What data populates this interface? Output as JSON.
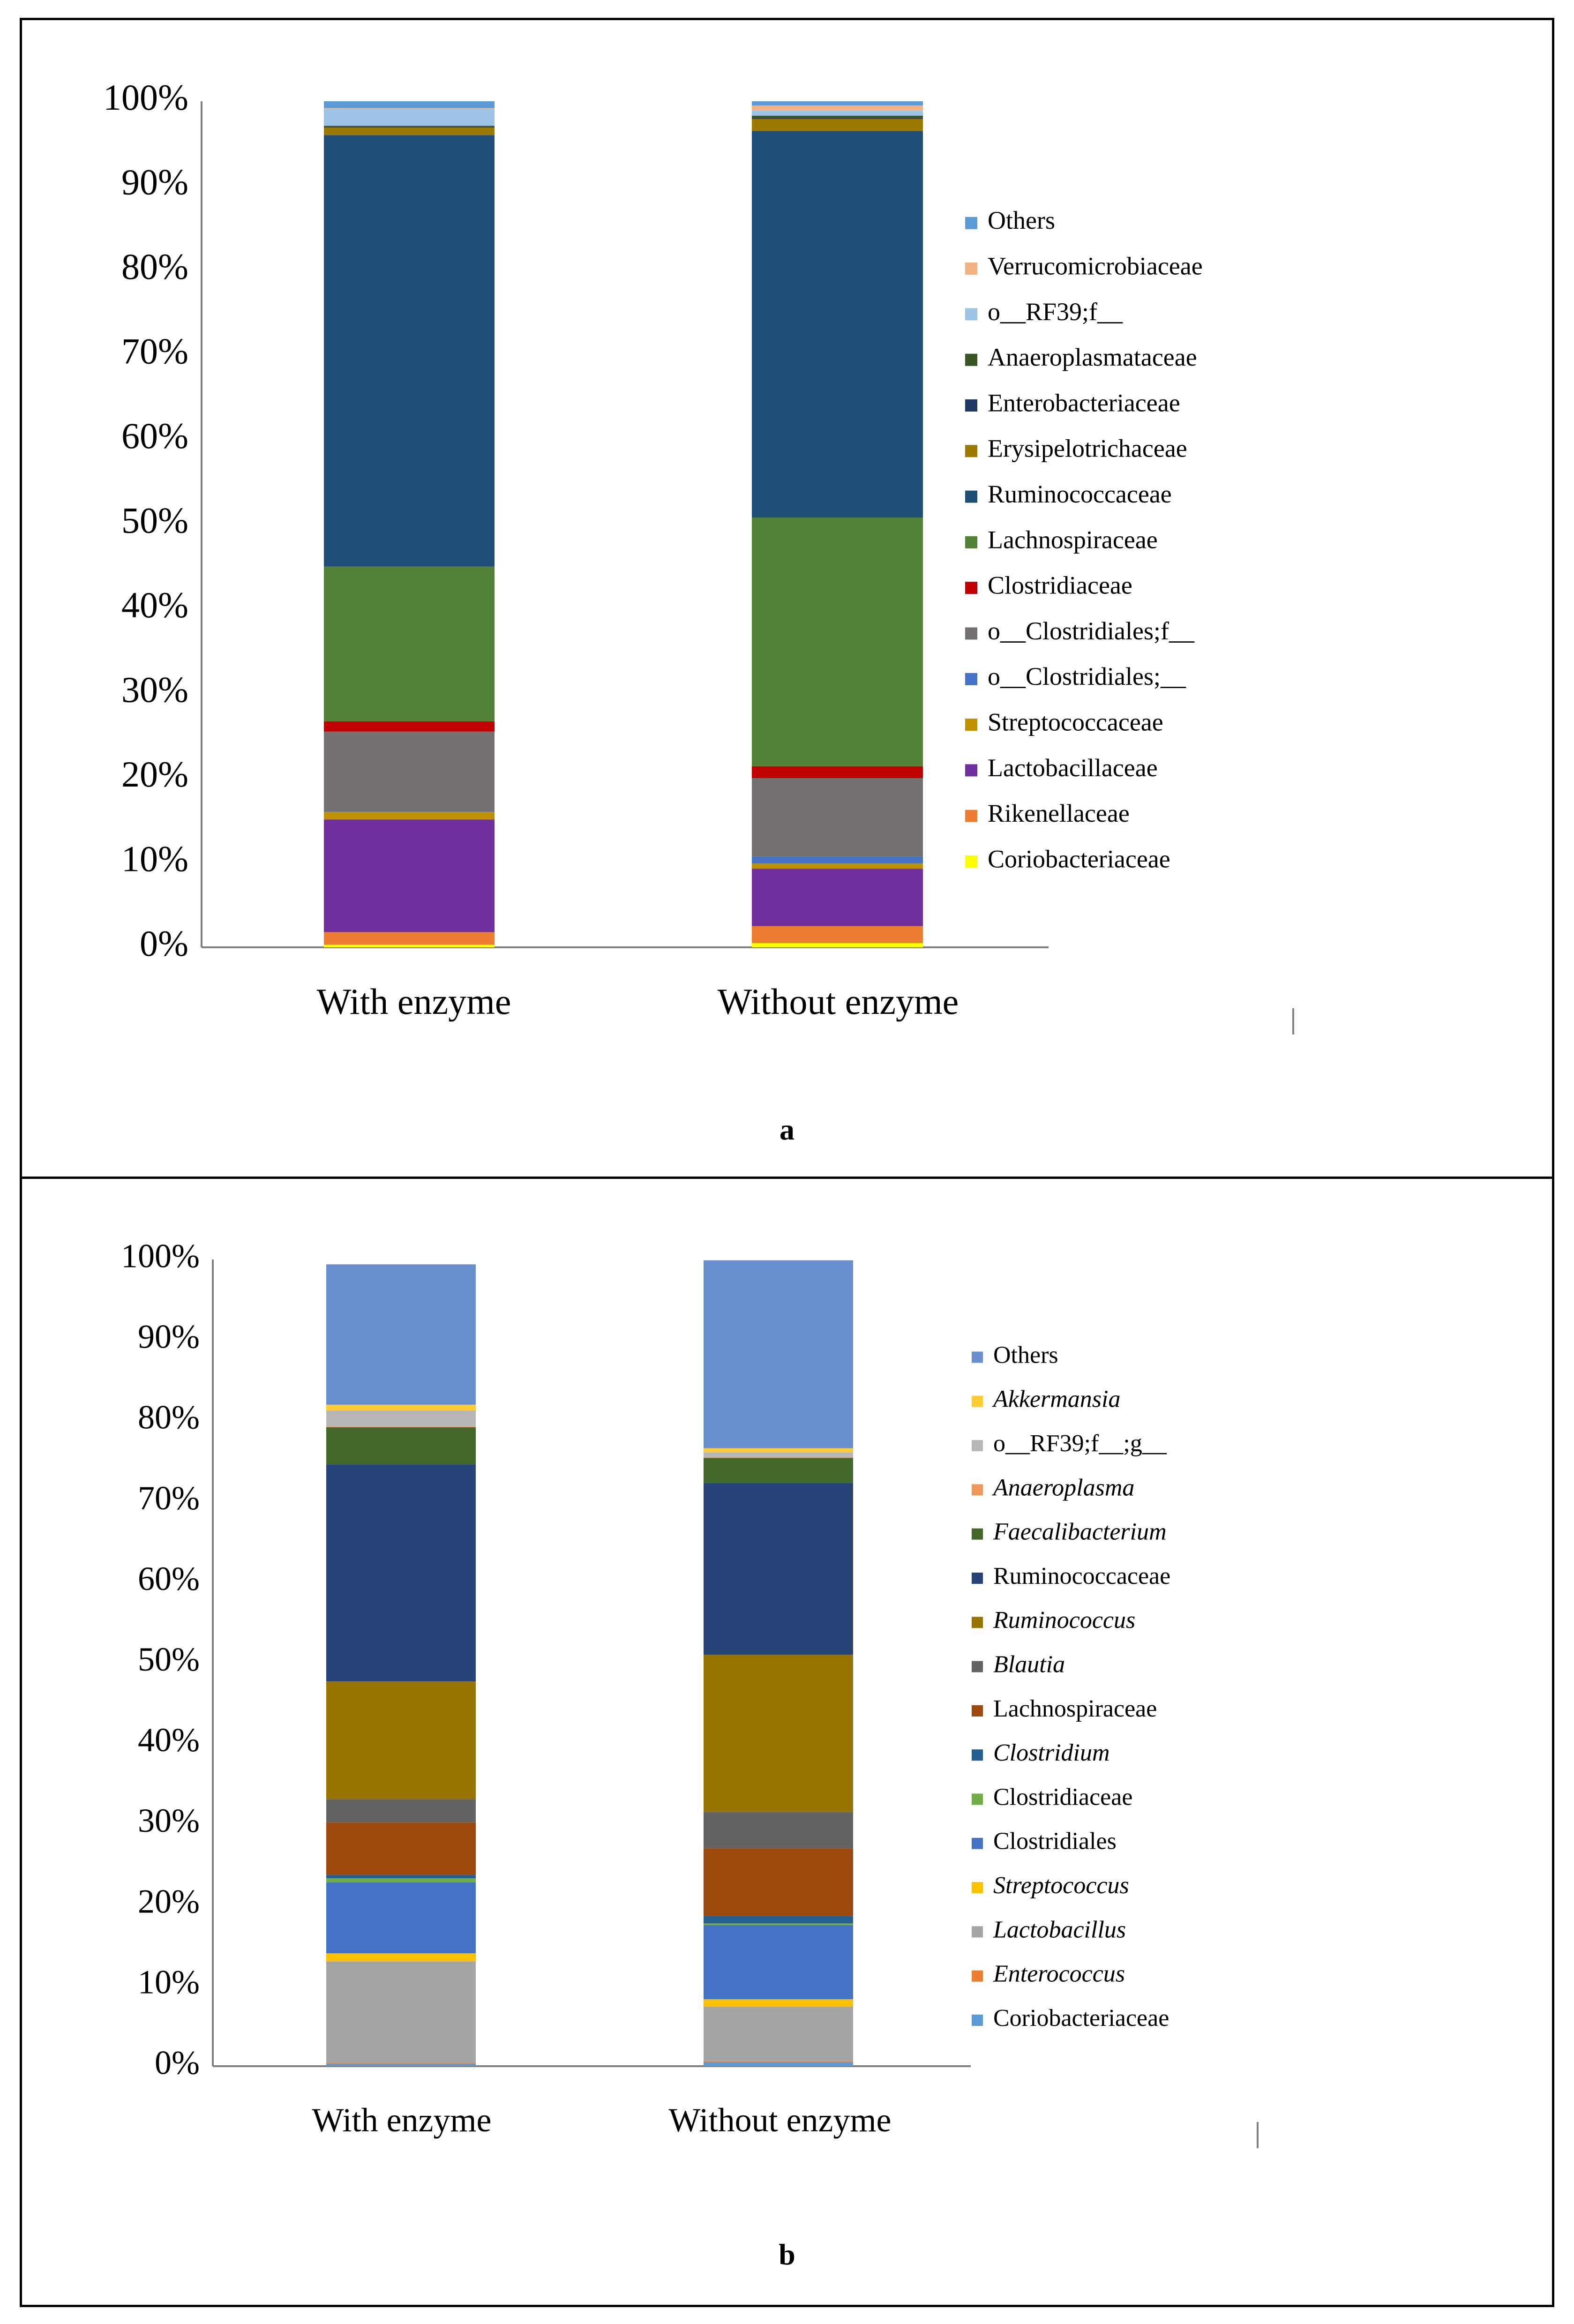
{
  "chart_data": [
    {
      "type": "bar",
      "stacked": true,
      "panel_label": "a",
      "title": "",
      "xlabel": "",
      "ylabel": "",
      "ylim": [
        0,
        100
      ],
      "yticks": [
        "0%",
        "10%",
        "20%",
        "30%",
        "40%",
        "50%",
        "60%",
        "70%",
        "80%",
        "90%",
        "100%"
      ],
      "grid": false,
      "legend_position": "right",
      "categories": [
        "With enzyme",
        "Without enzyme"
      ],
      "series": [
        {
          "name": "Coriobacteriaceae",
          "italic": false,
          "color": "#FFFF00",
          "values": [
            0.3,
            0.5
          ]
        },
        {
          "name": "Rikenellaceae",
          "italic": false,
          "color": "#ED7D31",
          "values": [
            1.5,
            2.0
          ]
        },
        {
          "name": "Lactobacillaceae",
          "italic": false,
          "color": "#7030A0",
          "values": [
            13.3,
            6.8
          ]
        },
        {
          "name": "Streptococcaceae",
          "italic": false,
          "color": "#BF9000",
          "values": [
            0.9,
            0.6
          ]
        },
        {
          "name": "o__Clostridiales;__",
          "italic": false,
          "color": "#4472C4",
          "values": [
            0.1,
            0.8
          ]
        },
        {
          "name": "o__Clostridiales;f__",
          "italic": false,
          "color": "#767171",
          "values": [
            9.4,
            9.3
          ]
        },
        {
          "name": "Clostridiaceae",
          "italic": false,
          "color": "#C00000",
          "values": [
            1.2,
            1.4
          ]
        },
        {
          "name": "Lachnospiraceae",
          "italic": false,
          "color": "#538135",
          "values": [
            18.3,
            29.4
          ]
        },
        {
          "name": "Ruminococcaceae",
          "italic": false,
          "color": "#1F4E79",
          "values": [
            51.0,
            45.7
          ]
        },
        {
          "name": "Erysipelotrichaceae",
          "italic": false,
          "color": "#9C7A00",
          "values": [
            0.9,
            1.4
          ]
        },
        {
          "name": "Enterobacteriaceae",
          "italic": false,
          "color": "#203864",
          "values": [
            0.1,
            0.1
          ]
        },
        {
          "name": "Anaeroplasmataceae",
          "italic": false,
          "color": "#375623",
          "values": [
            0.1,
            0.3
          ]
        },
        {
          "name": "o__RF39;f__",
          "italic": false,
          "color": "#9DC3E6",
          "values": [
            2.0,
            0.6
          ]
        },
        {
          "name": "Verrucomicrobiaceae",
          "italic": false,
          "color": "#F4B183",
          "values": [
            0.1,
            0.6
          ]
        },
        {
          "name": "Others",
          "italic": false,
          "color": "#5B9BD5",
          "values": [
            0.8,
            0.5
          ]
        }
      ]
    },
    {
      "type": "bar",
      "stacked": true,
      "panel_label": "b",
      "title": "",
      "xlabel": "",
      "ylabel": "",
      "ylim": [
        0,
        100
      ],
      "yticks": [
        "0%",
        "10%",
        "20%",
        "30%",
        "40%",
        "50%",
        "60%",
        "70%",
        "80%",
        "90%",
        "100%"
      ],
      "grid": false,
      "legend_position": "right",
      "categories": [
        "With enzyme",
        "Without enzyme"
      ],
      "series": [
        {
          "name": "Coriobacteriaceae",
          "italic": false,
          "color": "#5B9BD5",
          "values": [
            0.3,
            0.5
          ]
        },
        {
          "name": "Enterococcus",
          "italic": true,
          "color": "#ED7D31",
          "values": [
            0.1,
            0.1
          ]
        },
        {
          "name": "Lactobacillus",
          "italic": true,
          "color": "#A5A5A5",
          "values": [
            12.6,
            6.8
          ]
        },
        {
          "name": "Streptococcus",
          "italic": true,
          "color": "#FFC000",
          "values": [
            1.0,
            0.9
          ]
        },
        {
          "name": "Clostridiales",
          "italic": false,
          "color": "#4472C4",
          "values": [
            8.8,
            9.2
          ]
        },
        {
          "name": "Clostridiaceae",
          "italic": false,
          "color": "#70AD47",
          "values": [
            0.5,
            0.2
          ]
        },
        {
          "name": "Clostridium",
          "italic": true,
          "color": "#255E91",
          "values": [
            0.4,
            0.9
          ]
        },
        {
          "name": "Lachnospiraceae",
          "italic": false,
          "color": "#9E480E",
          "values": [
            6.5,
            8.4
          ]
        },
        {
          "name": "Blautia",
          "italic": true,
          "color": "#636363",
          "values": [
            2.9,
            4.5
          ]
        },
        {
          "name": "Ruminococcus",
          "italic": true,
          "color": "#997300",
          "values": [
            14.6,
            19.5
          ]
        },
        {
          "name": "Ruminococcaceae",
          "italic": false,
          "color": "#264478",
          "values": [
            26.9,
            21.3
          ]
        },
        {
          "name": "Faecalibacterium",
          "italic": true,
          "color": "#43682B",
          "values": [
            4.6,
            3.1
          ]
        },
        {
          "name": "Anaeroplasma",
          "italic": true,
          "color": "#F1975A",
          "values": [
            0.1,
            0.1
          ]
        },
        {
          "name": "o__RF39;f__;g__",
          "italic": false,
          "color": "#B7B7B7",
          "values": [
            2.0,
            0.6
          ]
        },
        {
          "name": "Akkermansia",
          "italic": true,
          "color": "#FFCD33",
          "values": [
            0.7,
            0.5
          ]
        },
        {
          "name": "Others",
          "italic": false,
          "color": "#698ED0",
          "values": [
            17.4,
            23.3
          ]
        }
      ]
    }
  ]
}
